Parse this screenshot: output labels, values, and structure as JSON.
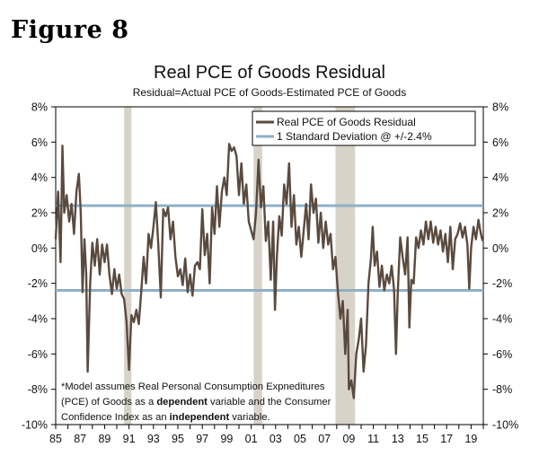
{
  "figure_label": "Figure 8",
  "note": {
    "line1": "*Model assumes Real Personal Consumption Expnediture",
    "line1b": "s",
    "line2a": "(PCE) of Goods as a ",
    "line2b": "dependent",
    "line2c": " variable and the Consumer",
    "line3a": "Confidence Index as an ",
    "line3b": "independent",
    "line3c": " variable."
  },
  "chart_data": {
    "type": "line",
    "title": "Real PCE of Goods Residual",
    "subtitle": "Residual=Actual PCE of Goods-Estimated PCE of Goods",
    "xlabel": "",
    "ylabel": "",
    "xlim": [
      1985,
      2020
    ],
    "ylim": [
      -10,
      8
    ],
    "x_tick_labels": [
      "85",
      "87",
      "89",
      "91",
      "93",
      "95",
      "97",
      "99",
      "01",
      "03",
      "05",
      "07",
      "09",
      "11",
      "13",
      "15",
      "17",
      "19"
    ],
    "x_tick_years": [
      1985,
      1987,
      1989,
      1991,
      1993,
      1995,
      1997,
      1999,
      2001,
      2003,
      2005,
      2007,
      2009,
      2011,
      2013,
      2015,
      2017,
      2019
    ],
    "y_tick_values": [
      8,
      6,
      4,
      2,
      0,
      -2,
      -4,
      -6,
      -8,
      -10
    ],
    "y_tick_labels": [
      "8%",
      "6%",
      "4%",
      "2%",
      "0%",
      "-2%",
      "-4%",
      "-6%",
      "-8%",
      "-10%"
    ],
    "recessions": [
      [
        1990.6,
        1991.2
      ],
      [
        2001.2,
        2001.9
      ],
      [
        2007.9,
        2009.5
      ]
    ],
    "legend": {
      "placement": "top-right",
      "entries": [
        "Real PCE of Goods Residual",
        "1 Standard Deviation @ +/-2.4%"
      ]
    },
    "series": [
      {
        "name": "Real PCE of Goods Residual",
        "color": "#5a4a3e",
        "points": [
          [
            1985.0,
            0.5
          ],
          [
            1985.2,
            3.2
          ],
          [
            1985.4,
            -0.8
          ],
          [
            1985.55,
            5.8
          ],
          [
            1985.7,
            2.0
          ],
          [
            1985.9,
            3.0
          ],
          [
            1986.1,
            1.5
          ],
          [
            1986.3,
            2.5
          ],
          [
            1986.5,
            0.8
          ],
          [
            1986.7,
            3.2
          ],
          [
            1986.9,
            4.2
          ],
          [
            1987.05,
            2.0
          ],
          [
            1987.2,
            -2.5
          ],
          [
            1987.35,
            0.5
          ],
          [
            1987.5,
            -1.5
          ],
          [
            1987.62,
            -7.0
          ],
          [
            1987.72,
            -4.5
          ],
          [
            1987.82,
            -2.0
          ],
          [
            1988.0,
            0.3
          ],
          [
            1988.2,
            -1.0
          ],
          [
            1988.4,
            0.5
          ],
          [
            1988.6,
            -1.5
          ],
          [
            1988.8,
            0.2
          ],
          [
            1989.0,
            -0.8
          ],
          [
            1989.2,
            0.2
          ],
          [
            1989.4,
            -1.5
          ],
          [
            1989.6,
            -2.6
          ],
          [
            1989.8,
            -1.2
          ],
          [
            1990.0,
            -2.3
          ],
          [
            1990.2,
            -1.5
          ],
          [
            1990.4,
            -2.6
          ],
          [
            1990.6,
            -2.9
          ],
          [
            1990.8,
            -4.2
          ],
          [
            1991.0,
            -6.9
          ],
          [
            1991.2,
            -3.8
          ],
          [
            1991.4,
            -4.2
          ],
          [
            1991.6,
            -3.5
          ],
          [
            1991.8,
            -4.3
          ],
          [
            1992.0,
            -2.5
          ],
          [
            1992.2,
            -0.5
          ],
          [
            1992.4,
            -2.0
          ],
          [
            1992.6,
            0.8
          ],
          [
            1992.8,
            0.0
          ],
          [
            1993.0,
            1.2
          ],
          [
            1993.2,
            2.6
          ],
          [
            1993.4,
            0.2
          ],
          [
            1993.6,
            -2.8
          ],
          [
            1993.8,
            2.2
          ],
          [
            1994.0,
            1.8
          ],
          [
            1994.2,
            2.3
          ],
          [
            1994.4,
            0.5
          ],
          [
            1994.6,
            1.5
          ],
          [
            1994.8,
            -0.5
          ],
          [
            1995.0,
            -1.6
          ],
          [
            1995.2,
            -1.2
          ],
          [
            1995.4,
            -2.1
          ],
          [
            1995.6,
            -0.6
          ],
          [
            1995.8,
            -2.5
          ],
          [
            1996.0,
            -1.5
          ],
          [
            1996.2,
            -2.7
          ],
          [
            1996.4,
            -1.0
          ],
          [
            1996.6,
            -0.8
          ],
          [
            1996.8,
            -1.2
          ],
          [
            1997.0,
            2.2
          ],
          [
            1997.2,
            -0.4
          ],
          [
            1997.4,
            0.8
          ],
          [
            1997.6,
            -2.0
          ],
          [
            1997.8,
            2.3
          ],
          [
            1998.0,
            0.8
          ],
          [
            1998.2,
            3.5
          ],
          [
            1998.4,
            1.2
          ],
          [
            1998.6,
            3.2
          ],
          [
            1998.8,
            4.0
          ],
          [
            1999.0,
            3.0
          ],
          [
            1999.2,
            5.9
          ],
          [
            1999.4,
            5.5
          ],
          [
            1999.6,
            5.7
          ],
          [
            1999.8,
            5.2
          ],
          [
            2000.0,
            3.0
          ],
          [
            2000.2,
            4.8
          ],
          [
            2000.4,
            2.5
          ],
          [
            2000.6,
            3.6
          ],
          [
            2000.8,
            1.5
          ],
          [
            2001.0,
            1.0
          ],
          [
            2001.2,
            0.5
          ],
          [
            2001.4,
            2.0
          ],
          [
            2001.6,
            5.0
          ],
          [
            2001.8,
            2.3
          ],
          [
            2002.0,
            3.5
          ],
          [
            2002.2,
            0.4
          ],
          [
            2002.4,
            1.5
          ],
          [
            2002.6,
            -1.8
          ],
          [
            2002.8,
            1.5
          ],
          [
            2002.95,
            -3.5
          ],
          [
            2003.1,
            -0.5
          ],
          [
            2003.3,
            1.8
          ],
          [
            2003.5,
            0.7
          ],
          [
            2003.7,
            3.6
          ],
          [
            2003.9,
            2.5
          ],
          [
            2004.1,
            4.8
          ],
          [
            2004.3,
            1.2
          ],
          [
            2004.5,
            3.0
          ],
          [
            2004.7,
            0.2
          ],
          [
            2004.9,
            1.2
          ],
          [
            2005.1,
            -0.5
          ],
          [
            2005.3,
            1.0
          ],
          [
            2005.5,
            2.5
          ],
          [
            2005.7,
            0.5
          ],
          [
            2005.9,
            3.6
          ],
          [
            2006.1,
            2.0
          ],
          [
            2006.3,
            2.8
          ],
          [
            2006.5,
            0.3
          ],
          [
            2006.7,
            2.0
          ],
          [
            2006.9,
            0.0
          ],
          [
            2007.1,
            1.5
          ],
          [
            2007.3,
            0.2
          ],
          [
            2007.5,
            0.8
          ],
          [
            2007.7,
            -1.2
          ],
          [
            2007.9,
            -0.5
          ],
          [
            2008.1,
            -2.5
          ],
          [
            2008.3,
            -4.0
          ],
          [
            2008.5,
            -3.0
          ],
          [
            2008.7,
            -6.0
          ],
          [
            2008.9,
            -3.5
          ],
          [
            2009.0,
            -8.0
          ],
          [
            2009.2,
            -7.5
          ],
          [
            2009.4,
            -8.5
          ],
          [
            2009.6,
            -6.0
          ],
          [
            2009.8,
            -5.2
          ],
          [
            2010.0,
            -4.0
          ],
          [
            2010.2,
            -7.0
          ],
          [
            2010.4,
            -5.5
          ],
          [
            2010.6,
            -2.0
          ],
          [
            2010.8,
            -0.6
          ],
          [
            2010.95,
            1.2
          ],
          [
            2011.1,
            -1.0
          ],
          [
            2011.3,
            -0.2
          ],
          [
            2011.5,
            -2.2
          ],
          [
            2011.7,
            -1.0
          ],
          [
            2011.9,
            -2.4
          ],
          [
            2012.1,
            -1.5
          ],
          [
            2012.3,
            -2.0
          ],
          [
            2012.5,
            -1.0
          ],
          [
            2012.7,
            -2.4
          ],
          [
            2012.85,
            -6.0
          ],
          [
            2013.0,
            -2.5
          ],
          [
            2013.2,
            0.6
          ],
          [
            2013.4,
            -0.5
          ],
          [
            2013.6,
            -1.5
          ],
          [
            2013.8,
            0.6
          ],
          [
            2013.95,
            -4.5
          ],
          [
            2014.1,
            -1.8
          ],
          [
            2014.3,
            -2.0
          ],
          [
            2014.5,
            0.6
          ],
          [
            2014.7,
            0.0
          ],
          [
            2014.9,
            1.0
          ],
          [
            2015.1,
            0.2
          ],
          [
            2015.3,
            1.5
          ],
          [
            2015.5,
            0.5
          ],
          [
            2015.7,
            1.5
          ],
          [
            2015.9,
            0.3
          ],
          [
            2016.1,
            1.2
          ],
          [
            2016.3,
            0.2
          ],
          [
            2016.5,
            1.0
          ],
          [
            2016.7,
            -0.2
          ],
          [
            2016.9,
            0.8
          ],
          [
            2017.1,
            -0.8
          ],
          [
            2017.3,
            1.2
          ],
          [
            2017.5,
            -1.2
          ],
          [
            2017.7,
            0.5
          ],
          [
            2017.9,
            0.8
          ],
          [
            2018.1,
            1.4
          ],
          [
            2018.3,
            0.6
          ],
          [
            2018.5,
            1.2
          ],
          [
            2018.7,
            0.2
          ],
          [
            2018.85,
            -2.3
          ],
          [
            2019.0,
            0.0
          ],
          [
            2019.2,
            1.2
          ],
          [
            2019.4,
            0.5
          ],
          [
            2019.6,
            1.6
          ],
          [
            2019.8,
            0.8
          ],
          [
            2019.95,
            0.4
          ]
        ]
      },
      {
        "name": "1 Standard Deviation @ +/-2.4%",
        "color": "#8fb0c7",
        "upper": 2.4,
        "lower": -2.4
      }
    ]
  },
  "colors": {
    "recession": "#d8d3c8",
    "series_line": "#5a4a3e",
    "std_line": "#8fb0c7"
  }
}
